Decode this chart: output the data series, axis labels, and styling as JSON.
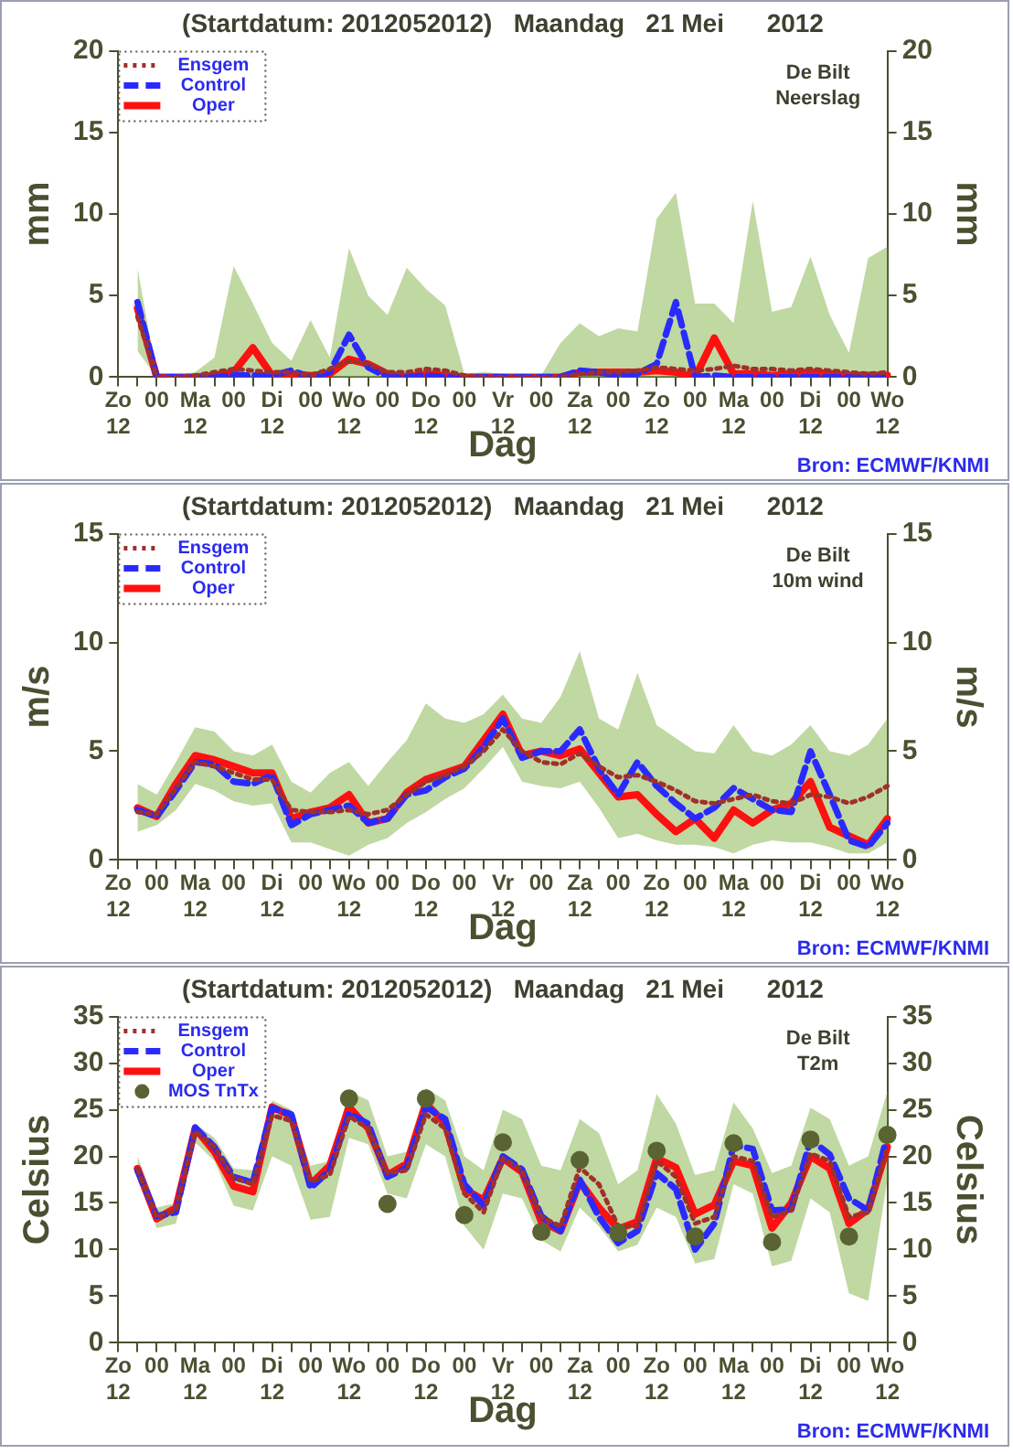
{
  "chart_data": [
    {
      "type": "line",
      "title": "(Startdatum: 2012052012)   Maandag   21 Mei      2012",
      "xlabel": "Dag",
      "ylabel": "mm",
      "y2label": "mm",
      "legend": "top left",
      "grid": false,
      "annotations": [
        "De Bilt\nNeerslag",
        "Bron: ECMWF/KNMI"
      ],
      "categories": [
        "Zo\n12",
        null,
        "00",
        null,
        "Ma\n12",
        null,
        "00",
        null,
        "Di\n12",
        null,
        "00",
        null,
        "Wo\n12",
        null,
        "00",
        null,
        "Do\n12",
        null,
        "00",
        null,
        "Vr\n12",
        null,
        "00",
        null,
        "Za\n12",
        null,
        "00",
        null,
        "Zo\n12",
        null,
        "00",
        null,
        "Ma\n12",
        null,
        "00",
        null,
        "Di\n12",
        null,
        "00",
        null,
        "Wo\n12"
      ],
      "ylim": [
        0,
        20
      ],
      "yticks": [
        0,
        5,
        10,
        15,
        20
      ],
      "y2lim": [
        0,
        20
      ],
      "y2ticks": [
        0,
        5,
        10,
        15,
        20
      ],
      "series": [
        {
          "name": "Ensgem",
          "color": "#a0302a",
          "line_style": "dotted",
          "values": [
            null,
            3.7,
            0,
            0,
            0.1,
            0.3,
            0.5,
            0.4,
            0.3,
            0.3,
            0.1,
            0.5,
            1.0,
            0.8,
            0.3,
            0.3,
            0.5,
            0.4,
            0.1,
            0,
            0,
            0,
            0,
            0,
            0.2,
            0.3,
            0.3,
            0.4,
            0.6,
            0.5,
            0.4,
            0.5,
            0.7,
            0.5,
            0.5,
            0.4,
            0.5,
            0.4,
            0.3,
            0.2,
            0.3
          ],
          "lower": [
            null,
            1.6,
            0,
            0,
            0,
            0,
            0,
            0,
            0,
            0,
            0,
            0,
            0,
            0,
            0,
            0,
            0,
            0,
            0,
            0,
            0,
            0,
            0,
            0,
            0,
            0,
            0,
            0,
            0,
            0,
            0,
            0,
            0,
            0,
            0,
            0,
            0,
            0,
            0,
            0,
            0
          ],
          "upper": [
            null,
            6.7,
            0.1,
            0.1,
            0.3,
            1.2,
            6.8,
            4.5,
            2.1,
            1.0,
            3.5,
            1.2,
            7.9,
            5.0,
            3.8,
            6.7,
            5.4,
            4.4,
            0.2,
            0.3,
            0.2,
            0.1,
            0.1,
            2.1,
            3.3,
            2.5,
            3.0,
            2.8,
            9.7,
            11.3,
            4.5,
            4.5,
            3.3,
            10.8,
            4.0,
            4.3,
            7.4,
            3.8,
            1.5,
            7.3,
            8.0
          ]
        },
        {
          "name": "Control",
          "color": "#2a2aff",
          "line_style": "dashed",
          "values": [
            null,
            4.6,
            0,
            0,
            0,
            0,
            0.1,
            0.1,
            0.1,
            0.4,
            0,
            0.3,
            2.6,
            0.6,
            0,
            0,
            0.1,
            0,
            0,
            0,
            0,
            0,
            0,
            0,
            0.4,
            0.3,
            0.1,
            0.2,
            0.8,
            4.6,
            0,
            0.1,
            0,
            0,
            0,
            0,
            0,
            0,
            0,
            0,
            0
          ]
        },
        {
          "name": "Oper",
          "color": "#ff1010",
          "line_style": "solid",
          "values": [
            null,
            4.2,
            0,
            0,
            0,
            0.1,
            0.3,
            1.8,
            0.1,
            0.2,
            0.1,
            0.2,
            1.1,
            0.8,
            0.2,
            0,
            0.2,
            0.1,
            0,
            0,
            0,
            0,
            0,
            0,
            0.3,
            0.3,
            0.3,
            0.3,
            0.4,
            0.3,
            0,
            2.4,
            0.2,
            0.2,
            0.1,
            0.2,
            0.3,
            0.2,
            0.1,
            0.1,
            0.1
          ]
        }
      ]
    },
    {
      "type": "line",
      "title": "(Startdatum: 2012052012)   Maandag   21 Mei      2012",
      "xlabel": "Dag",
      "ylabel": "m/s",
      "y2label": "m/s",
      "legend": "top left",
      "grid": false,
      "annotations": [
        "De Bilt\n10m wind",
        "Bron: ECMWF/KNMI"
      ],
      "categories": [
        "Zo\n12",
        null,
        "00",
        null,
        "Ma\n12",
        null,
        "00",
        null,
        "Di\n12",
        null,
        "00",
        null,
        "Wo\n12",
        null,
        "00",
        null,
        "Do\n12",
        null,
        "00",
        null,
        "Vr\n12",
        null,
        "00",
        null,
        "Za\n12",
        null,
        "00",
        null,
        "Zo\n12",
        null,
        "00",
        null,
        "Ma\n12",
        null,
        "00",
        null,
        "Di\n12",
        null,
        "00",
        null,
        "Wo\n12"
      ],
      "ylim": [
        0,
        15
      ],
      "yticks": [
        0,
        5,
        10,
        15
      ],
      "y2lim": [
        0,
        15
      ],
      "y2ticks": [
        0,
        5,
        10,
        15
      ],
      "series": [
        {
          "name": "Ensgem",
          "color": "#a0302a",
          "line_style": "dotted",
          "values": [
            null,
            2.2,
            2.1,
            3.3,
            4.5,
            4.3,
            4.0,
            3.7,
            3.7,
            2.3,
            2.2,
            2.2,
            2.3,
            2.1,
            2.3,
            3.0,
            3.6,
            3.9,
            4.3,
            5.0,
            6.0,
            5.0,
            4.5,
            4.4,
            4.9,
            4.3,
            3.8,
            3.9,
            3.6,
            3.2,
            2.7,
            2.6,
            2.8,
            3.0,
            2.7,
            2.6,
            3.0,
            2.9,
            2.6,
            2.9,
            3.4
          ],
          "lower": [
            null,
            1.3,
            1.6,
            2.3,
            3.5,
            3.2,
            2.7,
            2.5,
            2.6,
            0.8,
            0.8,
            0.5,
            0.2,
            0.7,
            1.0,
            1.7,
            2.2,
            2.8,
            3.3,
            4.2,
            5.2,
            3.6,
            3.4,
            3.3,
            3.6,
            2.4,
            1.0,
            1.2,
            0.9,
            0.7,
            0.7,
            0.6,
            0.3,
            0.7,
            0.9,
            0.8,
            0.8,
            0.6,
            0.3,
            0.3,
            0.8
          ],
          "upper": [
            null,
            3.5,
            3.0,
            4.5,
            6.1,
            5.9,
            5.0,
            4.8,
            5.3,
            3.6,
            3.1,
            4.0,
            4.5,
            3.4,
            4.5,
            5.5,
            7.2,
            6.5,
            6.3,
            6.7,
            7.6,
            6.5,
            6.3,
            7.5,
            9.6,
            6.5,
            6.0,
            8.6,
            6.2,
            5.6,
            5.0,
            4.9,
            6.2,
            5.0,
            4.8,
            5.3,
            6.2,
            5.0,
            4.8,
            5.3,
            6.5
          ]
        },
        {
          "name": "Control",
          "color": "#2a2aff",
          "line_style": "dashed",
          "values": [
            null,
            2.3,
            2.0,
            3.2,
            4.5,
            4.4,
            3.6,
            3.5,
            3.9,
            1.6,
            2.1,
            2.3,
            2.5,
            1.7,
            1.9,
            3.0,
            3.2,
            3.8,
            4.2,
            5.2,
            6.5,
            4.7,
            5.0,
            5.0,
            6.0,
            4.2,
            3.0,
            4.5,
            3.4,
            2.6,
            1.9,
            2.4,
            3.3,
            2.8,
            2.3,
            2.2,
            5.0,
            3.0,
            0.9,
            0.6,
            1.7
          ]
        },
        {
          "name": "Oper",
          "color": "#ff1010",
          "line_style": "solid",
          "values": [
            null,
            2.4,
            2.0,
            3.5,
            4.8,
            4.6,
            4.3,
            4.0,
            4.0,
            1.9,
            2.2,
            2.4,
            3.0,
            1.7,
            1.9,
            3.1,
            3.7,
            4.0,
            4.3,
            5.5,
            6.7,
            4.8,
            5.0,
            4.8,
            5.1,
            4.0,
            2.9,
            3.0,
            2.1,
            1.3,
            1.9,
            1.0,
            2.3,
            1.7,
            2.3,
            2.6,
            3.6,
            1.5,
            1.1,
            0.7,
            1.9
          ]
        }
      ]
    },
    {
      "type": "line",
      "title": "(Startdatum: 2012052012)   Maandag   21 Mei      2012",
      "xlabel": "Dag",
      "ylabel": "Celsius",
      "y2label": "Celsius",
      "legend": "top left",
      "grid": false,
      "annotations": [
        "De Bilt\nT2m",
        "Bron: ECMWF/KNMI"
      ],
      "categories": [
        "Zo\n12",
        null,
        "00",
        null,
        "Ma\n12",
        null,
        "00",
        null,
        "Di\n12",
        null,
        "00",
        null,
        "Wo\n12",
        null,
        "00",
        null,
        "Do\n12",
        null,
        "00",
        null,
        "Vr\n12",
        null,
        "00",
        null,
        "Za\n12",
        null,
        "00",
        null,
        "Zo\n12",
        null,
        "00",
        null,
        "Ma\n12",
        null,
        "00",
        null,
        "Di\n12",
        null,
        "00",
        null,
        "Wo\n12"
      ],
      "ylim": [
        0,
        35
      ],
      "yticks": [
        0,
        5,
        10,
        15,
        20,
        25,
        30,
        35
      ],
      "y2lim": [
        0,
        35
      ],
      "y2ticks": [
        0,
        5,
        10,
        15,
        20,
        25,
        30,
        35
      ],
      "series": [
        {
          "name": "Ensgem",
          "color": "#a0302a",
          "line_style": "dotted",
          "values": [
            null,
            18.6,
            13.5,
            14.2,
            22.7,
            21,
            17.7,
            17,
            24.4,
            23.8,
            17.3,
            18,
            24.3,
            23,
            18.2,
            18.5,
            24.5,
            23,
            16,
            14,
            19.8,
            18.5,
            13.5,
            12.5,
            18.8,
            17,
            12.5,
            12.5,
            19.5,
            17.8,
            12.8,
            13.5,
            20,
            19.5,
            13.5,
            14.2,
            20.3,
            19.5,
            13.5,
            14,
            21
          ],
          "lower": [
            null,
            17.5,
            12.3,
            12.8,
            21.5,
            19.5,
            14.7,
            14.2,
            20,
            19,
            13.2,
            13.5,
            22,
            21.3,
            16,
            15.5,
            21.3,
            20,
            12.5,
            10,
            16,
            15.5,
            11,
            9.8,
            14.5,
            12.5,
            9.8,
            10.5,
            14.5,
            13.5,
            8.5,
            9,
            17,
            16,
            8.2,
            8.8,
            15.5,
            14,
            5.3,
            4.5,
            17.5
          ],
          "upper": [
            null,
            20,
            14.5,
            15,
            23.5,
            22,
            18.7,
            18.5,
            26,
            25,
            19,
            19.5,
            27,
            26,
            20,
            20.5,
            27.3,
            26,
            20,
            18.5,
            25,
            24,
            19,
            18.5,
            24,
            22.5,
            17,
            18.5,
            26.7,
            23.5,
            18,
            18.5,
            25.8,
            23,
            18.2,
            19,
            25.2,
            24,
            19,
            20,
            27
          ]
        },
        {
          "name": "Control",
          "color": "#2a2aff",
          "line_style": "dashed",
          "values": [
            null,
            18.5,
            13.6,
            14,
            23.1,
            21,
            17.8,
            17.2,
            25.2,
            24.5,
            16.6,
            18.5,
            24.6,
            23.5,
            17.8,
            18.8,
            25.3,
            24,
            17,
            14.7,
            20,
            18.6,
            13.6,
            12,
            17.5,
            13.5,
            10.7,
            12,
            18.2,
            16.5,
            10,
            12.8,
            21.2,
            20.8,
            14.2,
            14.3,
            21.8,
            20.2,
            15.5,
            14.2,
            22.3
          ]
        },
        {
          "name": "Oper",
          "color": "#ff1010",
          "line_style": "solid",
          "values": [
            null,
            18.7,
            13.3,
            14.5,
            23,
            20.5,
            16.8,
            16.2,
            25.3,
            24.3,
            17,
            19,
            25.3,
            23,
            18,
            19.2,
            25.7,
            23.5,
            16.5,
            15.3,
            19.8,
            18.3,
            13,
            12,
            17.3,
            14.5,
            12.2,
            13,
            19.8,
            18.8,
            13.8,
            14.8,
            19.5,
            19,
            12.3,
            15,
            20,
            18.7,
            12.8,
            14.3,
            21
          ]
        },
        {
          "name": "MOS TnTx",
          "type": "scatter",
          "marker": "circle",
          "color": "#5a6432",
          "values": [
            null,
            null,
            null,
            null,
            null,
            null,
            null,
            null,
            null,
            null,
            null,
            null,
            26.2,
            null,
            14.9,
            null,
            26.2,
            null,
            13.7,
            null,
            21.5,
            null,
            11.9,
            null,
            19.6,
            null,
            11.8,
            null,
            20.6,
            null,
            11.4,
            null,
            21.4,
            null,
            10.8,
            null,
            21.8,
            null,
            11.4,
            null,
            22.3
          ]
        }
      ]
    }
  ]
}
